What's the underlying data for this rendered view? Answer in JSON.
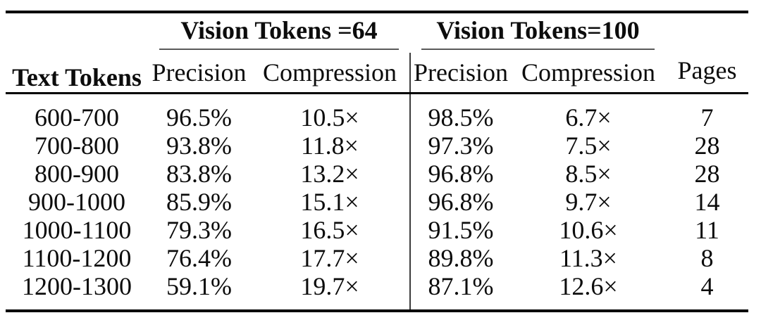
{
  "header": {
    "row_label_col": "Text Tokens",
    "groups": [
      {
        "label": "Vision Tokens =64",
        "sub": [
          "Precision",
          "Compression"
        ]
      },
      {
        "label": "Vision Tokens=100",
        "sub": [
          "Precision",
          "Compression"
        ]
      }
    ],
    "pages_col": "Pages"
  },
  "rows": [
    {
      "text_tokens": "600-700",
      "vt64_precision": "96.5%",
      "vt64_compression": "10.5×",
      "vt100_precision": "98.5%",
      "vt100_compression": "6.7×",
      "pages": "7"
    },
    {
      "text_tokens": "700-800",
      "vt64_precision": "93.8%",
      "vt64_compression": "11.8×",
      "vt100_precision": "97.3%",
      "vt100_compression": "7.5×",
      "pages": "28"
    },
    {
      "text_tokens": "800-900",
      "vt64_precision": "83.8%",
      "vt64_compression": "13.2×",
      "vt100_precision": "96.8%",
      "vt100_compression": "8.5×",
      "pages": "28"
    },
    {
      "text_tokens": "900-1000",
      "vt64_precision": "85.9%",
      "vt64_compression": "15.1×",
      "vt100_precision": "96.8%",
      "vt100_compression": "9.7×",
      "pages": "14"
    },
    {
      "text_tokens": "1000-1100",
      "vt64_precision": "79.3%",
      "vt64_compression": "16.5×",
      "vt100_precision": "91.5%",
      "vt100_compression": "10.6×",
      "pages": "11"
    },
    {
      "text_tokens": "1100-1200",
      "vt64_precision": "76.4%",
      "vt64_compression": "17.7×",
      "vt100_precision": "89.8%",
      "vt100_compression": "11.3×",
      "pages": "8"
    },
    {
      "text_tokens": "1200-1300",
      "vt64_precision": "59.1%",
      "vt64_compression": "19.7×",
      "vt100_precision": "87.1%",
      "vt100_compression": "12.6×",
      "pages": "4"
    }
  ],
  "colors": {
    "background": "#ffffff",
    "text": "#0c0c0c",
    "thick_rule": "#000000",
    "cmidrule": "#5a5a5a",
    "divider": "#3c3c3c"
  }
}
